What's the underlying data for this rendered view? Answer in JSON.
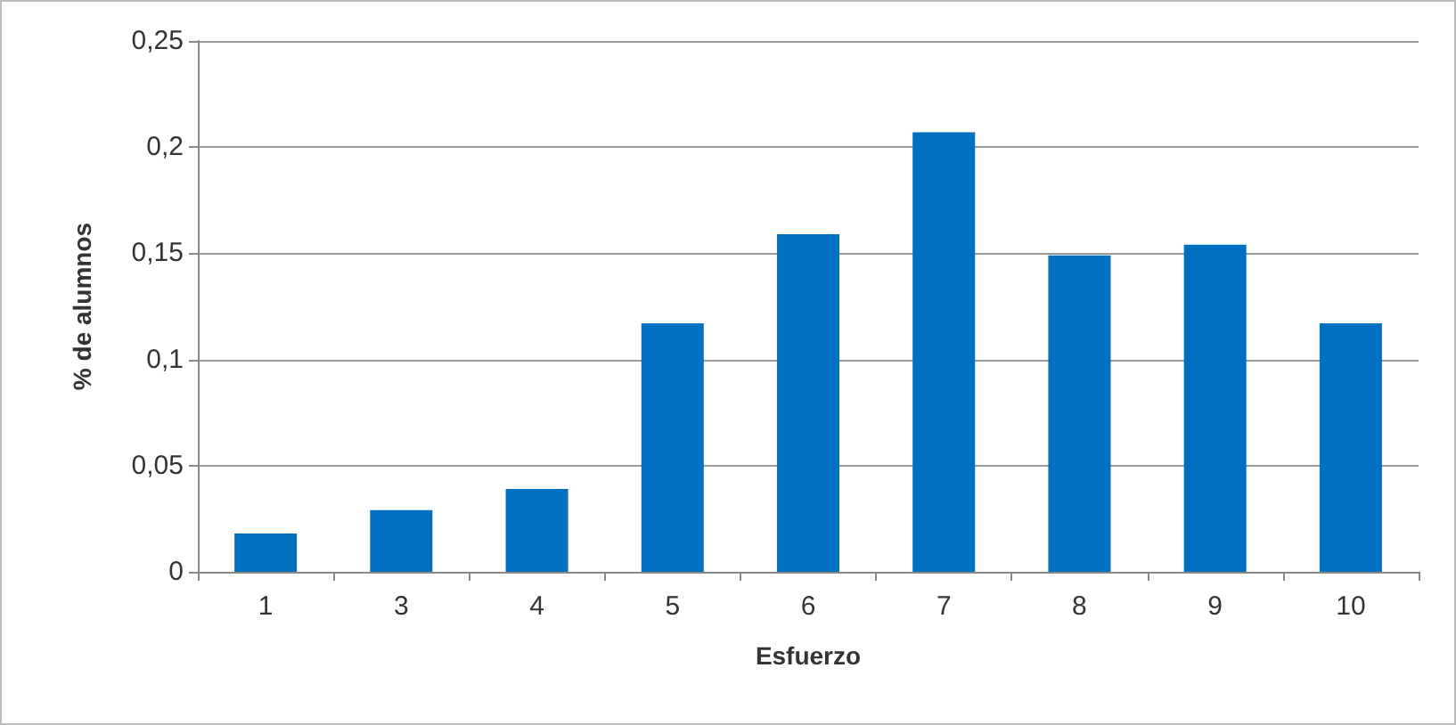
{
  "chart_data": {
    "type": "bar",
    "xlabel": "Esfuerzo",
    "ylabel": "% de alumnos",
    "categories": [
      "1",
      "3",
      "4",
      "5",
      "6",
      "7",
      "8",
      "9",
      "10"
    ],
    "values": [
      0.018,
      0.029,
      0.039,
      0.117,
      0.159,
      0.207,
      0.149,
      0.154,
      0.117
    ],
    "color": "#0070c0",
    "ylim": [
      0,
      0.25
    ],
    "yticks": [
      0,
      {
        "value": 0.05,
        "label": "0,05"
      },
      {
        "value": 0.1,
        "label": "0,1"
      },
      {
        "value": 0.15,
        "label": "0,15"
      },
      {
        "value": 0.2,
        "label": "0,2"
      },
      {
        "value": 0.25,
        "label": "0,25"
      }
    ],
    "grid": "y"
  }
}
